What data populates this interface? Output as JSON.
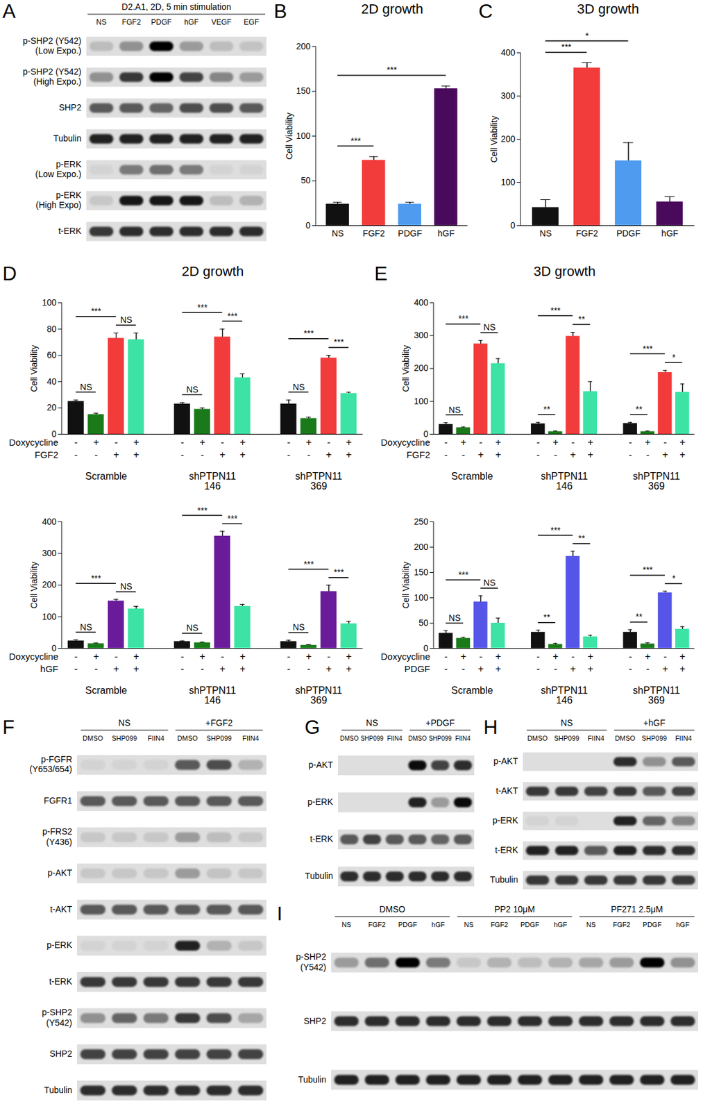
{
  "chart_data": [
    {
      "panel": "A",
      "type": "western_blot",
      "title": "D2.A1, 2D, 5 min stimulation",
      "lanes": [
        "NS",
        "FGF2",
        "PDGF",
        "hGF",
        "VEGF",
        "EGF"
      ],
      "rows": [
        {
          "label": "p-SHP2 (Y542)\n(Low Expo.)",
          "intensity": [
            0.15,
            0.35,
            1,
            0.3,
            0.15,
            0.12
          ]
        },
        {
          "label": "p-SHP2 (Y542)\n(High Expo.)",
          "intensity": [
            0.35,
            0.75,
            1,
            0.7,
            0.4,
            0.3
          ]
        },
        {
          "label": "SHP2",
          "intensity": [
            0.6,
            0.6,
            0.55,
            0.65,
            0.65,
            0.6
          ]
        },
        {
          "label": "Tubulin",
          "intensity": [
            0.85,
            0.85,
            0.85,
            0.85,
            0.85,
            0.85
          ]
        },
        {
          "label": "p-ERK\n(Low Expo.)",
          "intensity": [
            0.05,
            0.45,
            0.5,
            0.45,
            0.05,
            0.05
          ]
        },
        {
          "label": "p-ERK\n(High Expo)",
          "intensity": [
            0.1,
            0.9,
            0.9,
            0.9,
            0.15,
            0.2
          ]
        },
        {
          "label": "t-ERK",
          "intensity": [
            0.75,
            0.8,
            0.8,
            0.8,
            0.8,
            0.8
          ]
        }
      ]
    },
    {
      "panel": "B",
      "type": "bar",
      "title": "2D growth",
      "y_label": "Cell Viability",
      "categories": [
        "NS",
        "FGF2",
        "PDGF",
        "hGF"
      ],
      "values": [
        24,
        73,
        24,
        153
      ],
      "errors": [
        2,
        4,
        2,
        3
      ],
      "colors": [
        "#111111",
        "#f23b3b",
        "#4f9bf0",
        "#4a0a5c"
      ],
      "ylim": [
        0,
        200
      ],
      "yticks": [
        0,
        50,
        100,
        150,
        200
      ],
      "significance": [
        {
          "from": 0,
          "to": 1,
          "label": "***"
        },
        {
          "from": 0,
          "to": 3,
          "label": "***"
        }
      ]
    },
    {
      "panel": "C",
      "type": "bar",
      "title": "3D growth",
      "y_label": "Cell Viability",
      "categories": [
        "NS",
        "FGF2",
        "PDGF",
        "hGF"
      ],
      "values": [
        42,
        365,
        150,
        55
      ],
      "errors": [
        18,
        12,
        42,
        12
      ],
      "colors": [
        "#111111",
        "#f23b3b",
        "#4f9bf0",
        "#4a0a5c"
      ],
      "ylim": [
        0,
        400
      ],
      "yticks": [
        0,
        100,
        200,
        300,
        400
      ],
      "significance": [
        {
          "from": 0,
          "to": 1,
          "label": "***"
        },
        {
          "from": 0,
          "to": 2,
          "label": "*"
        }
      ]
    },
    {
      "panel": "D",
      "type": "grouped_bar",
      "title": "2D growth",
      "y_label": "Cell Viability",
      "groups": [
        "Scramble",
        "shPTPN11\n146",
        "shPTPN11\n369"
      ],
      "condition_rows": [
        {
          "name": "Doxycycline",
          "signs": [
            "-",
            "+",
            "-",
            "+"
          ]
        },
        {
          "name": "FGF2",
          "signs": [
            "-",
            "-",
            "+",
            "+"
          ]
        }
      ],
      "colors": [
        "#111111",
        "#1a7a1a",
        "#f23b3b",
        "#3de3a4"
      ],
      "values": [
        [
          25,
          15,
          73,
          72
        ],
        [
          23,
          19,
          74,
          43
        ],
        [
          23,
          12,
          58,
          31
        ]
      ],
      "errors": [
        [
          1,
          1,
          4,
          5
        ],
        [
          1,
          1,
          6,
          3
        ],
        [
          3,
          1,
          2,
          1
        ]
      ],
      "ylim": [
        0,
        100
      ],
      "yticks": [
        0,
        20,
        40,
        60,
        80,
        100
      ],
      "significance": [
        {
          "group": 0,
          "from": 0,
          "to": 1,
          "label": "NS"
        },
        {
          "group": 0,
          "from": 0,
          "to": 2,
          "label": "***"
        },
        {
          "group": 0,
          "from": 2,
          "to": 3,
          "label": "NS"
        },
        {
          "group": 1,
          "from": 0,
          "to": 1,
          "label": "NS"
        },
        {
          "group": 1,
          "from": 0,
          "to": 2,
          "label": "***"
        },
        {
          "group": 1,
          "from": 2,
          "to": 3,
          "label": "***"
        },
        {
          "group": 2,
          "from": 0,
          "to": 1,
          "label": "NS"
        },
        {
          "group": 2,
          "from": 0,
          "to": 2,
          "label": "***"
        },
        {
          "group": 2,
          "from": 2,
          "to": 3,
          "label": "***"
        }
      ]
    },
    {
      "type": "grouped_bar",
      "y_label": "Cell Viability",
      "groups": [
        "Scramble",
        "shPTPN11\n146",
        "shPTPN11\n369"
      ],
      "condition_rows": [
        {
          "name": "Doxycycline",
          "signs": [
            "-",
            "+",
            "-",
            "+"
          ]
        },
        {
          "name": "hGF",
          "signs": [
            "-",
            "-",
            "+",
            "+"
          ]
        }
      ],
      "colors": [
        "#111111",
        "#1a7a1a",
        "#6a1b9a",
        "#3de3a4"
      ],
      "values": [
        [
          24,
          15,
          150,
          125
        ],
        [
          22,
          18,
          355,
          133
        ],
        [
          22,
          10,
          180,
          78
        ]
      ],
      "errors": [
        [
          3,
          2,
          5,
          8
        ],
        [
          2,
          2,
          15,
          6
        ],
        [
          4,
          2,
          20,
          8
        ]
      ],
      "ylim": [
        0,
        400
      ],
      "yticks": [
        0,
        100,
        200,
        300,
        400
      ],
      "significance": [
        {
          "group": 0,
          "from": 0,
          "to": 1,
          "label": "NS"
        },
        {
          "group": 0,
          "from": 0,
          "to": 2,
          "label": "***"
        },
        {
          "group": 0,
          "from": 2,
          "to": 3,
          "label": "NS"
        },
        {
          "group": 1,
          "from": 0,
          "to": 1,
          "label": "NS"
        },
        {
          "group": 1,
          "from": 0,
          "to": 2,
          "label": "***"
        },
        {
          "group": 1,
          "from": 2,
          "to": 3,
          "label": "***"
        },
        {
          "group": 2,
          "from": 0,
          "to": 1,
          "label": "NS"
        },
        {
          "group": 2,
          "from": 0,
          "to": 2,
          "label": "***"
        },
        {
          "group": 2,
          "from": 2,
          "to": 3,
          "label": "***"
        }
      ]
    },
    {
      "panel": "E",
      "type": "grouped_bar",
      "title": "3D growth",
      "y_label": "Cell Viability",
      "groups": [
        "Scramble",
        "shPTPN11\n146",
        "shPTPN11\n369"
      ],
      "condition_rows": [
        {
          "name": "Doxycycline",
          "signs": [
            "-",
            "+",
            "-",
            "+"
          ]
        },
        {
          "name": "FGF2",
          "signs": [
            "-",
            "-",
            "+",
            "+"
          ]
        }
      ],
      "colors": [
        "#111111",
        "#1a7a1a",
        "#f23b3b",
        "#3de3a4"
      ],
      "values": [
        [
          30,
          20,
          275,
          215
        ],
        [
          32,
          8,
          298,
          130
        ],
        [
          33,
          8,
          188,
          128
        ]
      ],
      "errors": [
        [
          5,
          2,
          10,
          15
        ],
        [
          4,
          2,
          12,
          30
        ],
        [
          3,
          2,
          6,
          25
        ]
      ],
      "ylim": [
        0,
        400
      ],
      "yticks": [
        0,
        100,
        200,
        300,
        400
      ],
      "significance": [
        {
          "group": 0,
          "from": 0,
          "to": 1,
          "label": "NS"
        },
        {
          "group": 0,
          "from": 0,
          "to": 2,
          "label": "***"
        },
        {
          "group": 0,
          "from": 2,
          "to": 3,
          "label": "NS"
        },
        {
          "group": 1,
          "from": 0,
          "to": 1,
          "label": "**"
        },
        {
          "group": 1,
          "from": 0,
          "to": 2,
          "label": "***"
        },
        {
          "group": 1,
          "from": 2,
          "to": 3,
          "label": "**"
        },
        {
          "group": 2,
          "from": 0,
          "to": 1,
          "label": "**"
        },
        {
          "group": 2,
          "from": 0,
          "to": 2,
          "label": "***"
        },
        {
          "group": 2,
          "from": 2,
          "to": 3,
          "label": "*"
        }
      ]
    },
    {
      "type": "grouped_bar",
      "y_label": "Cell Viability",
      "groups": [
        "Scramble",
        "shPTPN11\n146",
        "shPTPN11\n369"
      ],
      "condition_rows": [
        {
          "name": "Doxycycline",
          "signs": [
            "-",
            "+",
            "-",
            "+"
          ]
        },
        {
          "name": "PDGF",
          "signs": [
            "-",
            "-",
            "+",
            "+"
          ]
        }
      ],
      "colors": [
        "#111111",
        "#1a7a1a",
        "#5555e8",
        "#3de3a4"
      ],
      "values": [
        [
          30,
          20,
          92,
          50
        ],
        [
          32,
          8,
          182,
          23
        ],
        [
          32,
          9,
          110,
          38
        ]
      ],
      "errors": [
        [
          5,
          2,
          12,
          10
        ],
        [
          4,
          2,
          10,
          3
        ],
        [
          5,
          2,
          3,
          5
        ]
      ],
      "ylim": [
        0,
        250
      ],
      "yticks": [
        0,
        50,
        100,
        150,
        200,
        250
      ],
      "significance": [
        {
          "group": 0,
          "from": 0,
          "to": 1,
          "label": "NS"
        },
        {
          "group": 0,
          "from": 0,
          "to": 2,
          "label": "***"
        },
        {
          "group": 0,
          "from": 2,
          "to": 3,
          "label": "NS"
        },
        {
          "group": 1,
          "from": 0,
          "to": 1,
          "label": "**"
        },
        {
          "group": 1,
          "from": 0,
          "to": 2,
          "label": "***"
        },
        {
          "group": 1,
          "from": 2,
          "to": 3,
          "label": "**"
        },
        {
          "group": 2,
          "from": 0,
          "to": 1,
          "label": "**"
        },
        {
          "group": 2,
          "from": 0,
          "to": 2,
          "label": "***"
        },
        {
          "group": 2,
          "from": 2,
          "to": 3,
          "label": "*"
        }
      ]
    },
    {
      "panel": "F",
      "type": "western_blot",
      "groups": [
        {
          "label": "NS",
          "lanes": 3
        },
        {
          "label": "+FGF2",
          "lanes": 3
        }
      ],
      "lanes": [
        "DMSO",
        "SHP099",
        "FIIN4",
        "DMSO",
        "SHP099",
        "FIIN4"
      ],
      "rows": [
        {
          "label": "p-FGFR\n(Y653/654)",
          "intensity": [
            0.05,
            0.05,
            0.05,
            0.6,
            0.65,
            0.2
          ]
        },
        {
          "label": "FGFR1",
          "intensity": [
            0.6,
            0.6,
            0.6,
            0.6,
            0.6,
            0.6
          ]
        },
        {
          "label": "p-FRS2\n(Y436)",
          "intensity": [
            0.1,
            0.1,
            0.1,
            0.3,
            0.15,
            0.1
          ]
        },
        {
          "label": "p-AKT",
          "intensity": [
            0.1,
            0.1,
            0.1,
            0.3,
            0.12,
            0.1
          ]
        },
        {
          "label": "t-AKT",
          "intensity": [
            0.6,
            0.6,
            0.6,
            0.6,
            0.6,
            0.6
          ]
        },
        {
          "label": "p-ERK",
          "intensity": [
            0.05,
            0.05,
            0.05,
            0.85,
            0.2,
            0.1
          ]
        },
        {
          "label": "t-ERK",
          "intensity": [
            0.75,
            0.75,
            0.75,
            0.75,
            0.75,
            0.75
          ]
        },
        {
          "label": "p-SHP2\n(Y542)",
          "intensity": [
            0.35,
            0.55,
            0.45,
            0.75,
            0.65,
            0.25
          ]
        },
        {
          "label": "SHP2",
          "intensity": [
            0.7,
            0.7,
            0.7,
            0.7,
            0.7,
            0.7
          ]
        },
        {
          "label": "Tubulin",
          "intensity": [
            0.8,
            0.8,
            0.8,
            0.8,
            0.8,
            0.8
          ]
        }
      ]
    },
    {
      "panel": "G",
      "type": "western_blot",
      "groups": [
        {
          "label": "NS",
          "lanes": 3
        },
        {
          "label": "+PDGF",
          "lanes": 3
        }
      ],
      "lanes": [
        "DMSO",
        "SHP099",
        "FIIN4",
        "DMSO",
        "SHP099",
        "FIIN4"
      ],
      "rows": [
        {
          "label": "p-AKT",
          "intensity": [
            0,
            0,
            0,
            0.95,
            0.7,
            0.8
          ]
        },
        {
          "label": "p-ERK",
          "intensity": [
            0,
            0,
            0,
            0.85,
            0.3,
            0.95
          ]
        },
        {
          "label": "t-ERK",
          "intensity": [
            0.6,
            0.7,
            0.6,
            0.6,
            0.55,
            0.6
          ]
        },
        {
          "label": "Tubulin",
          "intensity": [
            0.8,
            0.8,
            0.8,
            0.8,
            0.8,
            0.8
          ]
        }
      ]
    },
    {
      "panel": "H",
      "type": "western_blot",
      "groups": [
        {
          "label": "NS",
          "lanes": 3
        },
        {
          "label": "+hGF",
          "lanes": 3
        }
      ],
      "lanes": [
        "DMSO",
        "SHP099",
        "FIIN4",
        "DMSO",
        "SHP099",
        "FIIN4"
      ],
      "rows": [
        {
          "label": "p-AKT",
          "intensity": [
            0,
            0,
            0,
            0.8,
            0.35,
            0.6
          ]
        },
        {
          "label": "t-AKT",
          "intensity": [
            0.75,
            0.75,
            0.7,
            0.75,
            0.6,
            0.7
          ]
        },
        {
          "label": "p-ERK",
          "intensity": [
            0.05,
            0.05,
            0,
            0.85,
            0.55,
            0.4
          ]
        },
        {
          "label": "t-ERK",
          "intensity": [
            0.85,
            0.85,
            0.6,
            0.85,
            0.8,
            0.8
          ]
        },
        {
          "label": "Tubulin",
          "intensity": [
            0.75,
            0.75,
            0.75,
            0.75,
            0.75,
            0.75
          ]
        }
      ]
    },
    {
      "panel": "I",
      "type": "western_blot",
      "groups": [
        {
          "label": "DMSO",
          "lanes": 4
        },
        {
          "label": "PP2 10μM",
          "lanes": 4
        },
        {
          "label": "PF271 2.5μM",
          "lanes": 4
        }
      ],
      "lanes": [
        "NS",
        "FGF2",
        "PDGF",
        "hGF",
        "NS",
        "FGF2",
        "PDGF",
        "hGF",
        "NS",
        "FGF2",
        "PDGF",
        "hGF"
      ],
      "rows": [
        {
          "label": "p-SHP2\n(Y542)",
          "intensity": [
            0.3,
            0.5,
            1,
            0.45,
            0.1,
            0.2,
            0.15,
            0.2,
            0.25,
            0.3,
            1,
            0.35
          ]
        },
        {
          "label": "SHP2",
          "intensity": [
            0.8,
            0.8,
            0.8,
            0.8,
            0.8,
            0.8,
            0.8,
            0.8,
            0.8,
            0.8,
            0.8,
            0.8
          ]
        },
        {
          "label": "Tubulin",
          "intensity": [
            0.85,
            0.85,
            0.85,
            0.85,
            0.85,
            0.85,
            0.85,
            0.85,
            0.85,
            0.85,
            0.85,
            0.85
          ]
        }
      ]
    }
  ]
}
